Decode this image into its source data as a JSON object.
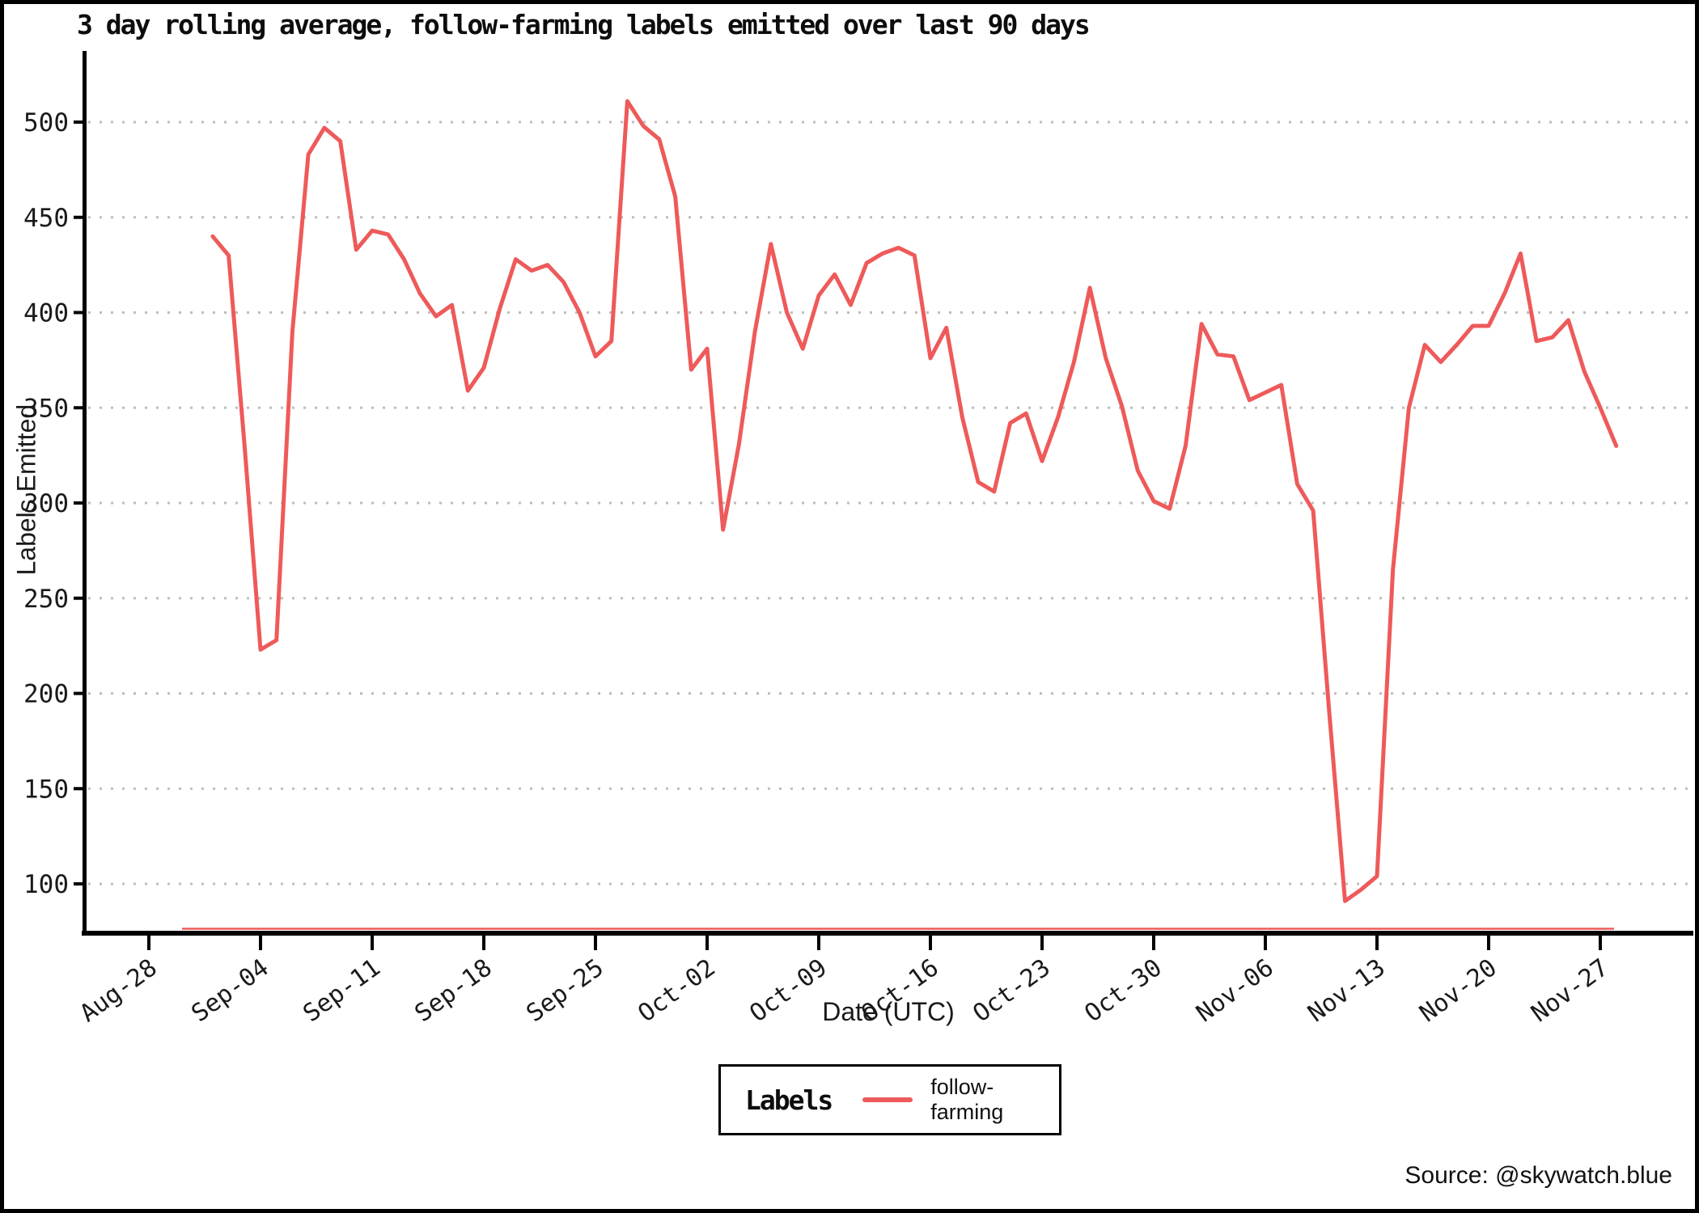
{
  "title": "3 day rolling average, follow-farming labels emitted over last 90 days",
  "source": "Source: @skywatch.blue",
  "axes": {
    "x_label": "Date (UTC)",
    "y_label": "Labels Emitted"
  },
  "legend": {
    "title": "Labels",
    "series_label": "follow-farming"
  },
  "chart_data": {
    "type": "line",
    "title": "3 day rolling average, follow-farming labels emitted over last 90 days",
    "xlabel": "Date (UTC)",
    "ylabel": "Labels Emitted",
    "grid": "horizontal dotted",
    "legend_position": "bottom-center",
    "ylim": [
      75,
      536
    ],
    "y_ticks": [
      100,
      150,
      200,
      250,
      300,
      350,
      400,
      450,
      500
    ],
    "x_tick_labels": [
      "Aug-28",
      "Sep-04",
      "Sep-11",
      "Sep-18",
      "Sep-25",
      "Oct-02",
      "Oct-09",
      "Oct-16",
      "Oct-23",
      "Oct-30",
      "Nov-06",
      "Nov-13",
      "Nov-20",
      "Nov-27"
    ],
    "x_tick_step_days": 7,
    "baseline_at_axis": true,
    "colors": {
      "series": "#ee5a5a",
      "gridline": "#bdbdbd",
      "axis": "#000000",
      "text": "#1a1a1a"
    },
    "series": [
      {
        "name": "follow-farming",
        "color": "#ee5a5a",
        "dates": [
          "Sep-01",
          "Sep-02",
          "Sep-03",
          "Sep-04",
          "Sep-05",
          "Sep-06",
          "Sep-07",
          "Sep-08",
          "Sep-09",
          "Sep-10",
          "Sep-11",
          "Sep-12",
          "Sep-13",
          "Sep-14",
          "Sep-15",
          "Sep-16",
          "Sep-17",
          "Sep-18",
          "Sep-19",
          "Sep-20",
          "Sep-21",
          "Sep-22",
          "Sep-23",
          "Sep-24",
          "Sep-25",
          "Sep-26",
          "Sep-27",
          "Sep-28",
          "Sep-29",
          "Sep-30",
          "Oct-01",
          "Oct-02",
          "Oct-03",
          "Oct-04",
          "Oct-05",
          "Oct-06",
          "Oct-07",
          "Oct-08",
          "Oct-09",
          "Oct-10",
          "Oct-11",
          "Oct-12",
          "Oct-13",
          "Oct-14",
          "Oct-15",
          "Oct-16",
          "Oct-17",
          "Oct-18",
          "Oct-19",
          "Oct-20",
          "Oct-21",
          "Oct-22",
          "Oct-23",
          "Oct-24",
          "Oct-25",
          "Oct-26",
          "Oct-27",
          "Oct-28",
          "Oct-29",
          "Oct-30",
          "Oct-31",
          "Nov-01",
          "Nov-02",
          "Nov-03",
          "Nov-04",
          "Nov-05",
          "Nov-06",
          "Nov-07",
          "Nov-08",
          "Nov-09",
          "Nov-10",
          "Nov-11",
          "Nov-12",
          "Nov-13",
          "Nov-14",
          "Nov-15",
          "Nov-16",
          "Nov-17",
          "Nov-18",
          "Nov-19",
          "Nov-20",
          "Nov-21",
          "Nov-22",
          "Nov-23",
          "Nov-24",
          "Nov-25",
          "Nov-26",
          "Nov-27",
          "Nov-28"
        ],
        "values": [
          440,
          430,
          330,
          223,
          228,
          390,
          483,
          497,
          490,
          433,
          443,
          441,
          428,
          410,
          398,
          404,
          359,
          371,
          402,
          428,
          422,
          425,
          416,
          400,
          377,
          385,
          511,
          498,
          491,
          461,
          370,
          381,
          286,
          331,
          390,
          436,
          400,
          381,
          409,
          420,
          404,
          426,
          431,
          434,
          430,
          376,
          392,
          345,
          311,
          306,
          342,
          347,
          322,
          345,
          374,
          413,
          376,
          351,
          317,
          301,
          297,
          330,
          394,
          378,
          377,
          354,
          358,
          362,
          310,
          296,
          191,
          91,
          97,
          104,
          265,
          350,
          383,
          374,
          383,
          393,
          393,
          410,
          431,
          385,
          387,
          396,
          369,
          350,
          330
        ]
      }
    ]
  }
}
